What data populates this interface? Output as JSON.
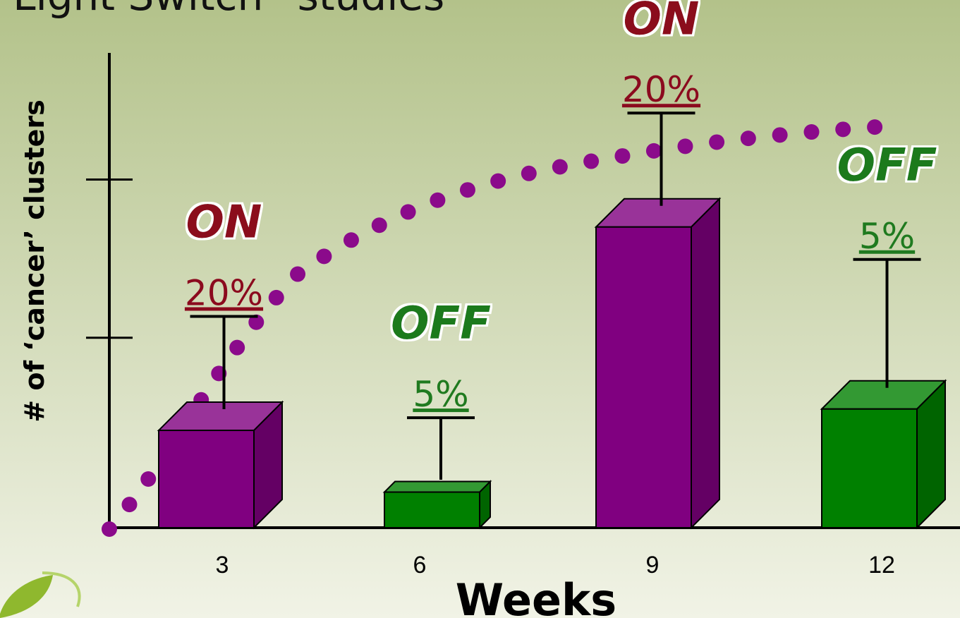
{
  "chart_data": {
    "type": "bar3d",
    "title": "“Light Switch” studies",
    "x_label": "Weeks",
    "y_label": "# of ‘cancer’ clusters",
    "categories": [
      "3",
      "6",
      "9",
      "12"
    ],
    "values": [
      1.23,
      0.45,
      3.8,
      1.5
    ],
    "errors": [
      1.44,
      0.94,
      1.44,
      1.89
    ],
    "colors": [
      "#800080",
      "#008000",
      "#800080",
      "#008000"
    ],
    "annotations": [
      {
        "state": "ON",
        "percent": "20%",
        "color": "#8b0a1e"
      },
      {
        "state": "OFF",
        "percent": "5%",
        "color": "#1f7a1f"
      },
      {
        "state": "ON",
        "percent": "20%",
        "color": "#8b0a1e"
      },
      {
        "state": "OFF",
        "percent": "5%",
        "color": "#1f7a1f"
      }
    ],
    "ylim": [
      0,
      6
    ],
    "yticks": [
      2.4,
      4.4
    ]
  }
}
